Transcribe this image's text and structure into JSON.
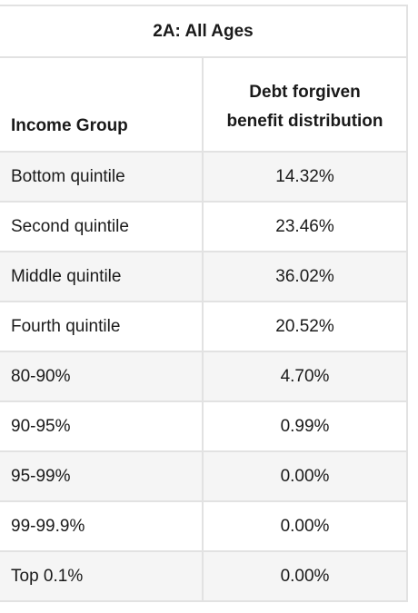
{
  "table": {
    "caption": "2A: All Ages",
    "headers": {
      "group": "Income Group",
      "value_line1": "Debt forgiven",
      "value_line2": "benefit distribution"
    },
    "rows": [
      {
        "group": "Bottom quintile",
        "value": "14.32%"
      },
      {
        "group": "Second quintile",
        "value": "23.46%"
      },
      {
        "group": "Middle quintile",
        "value": "36.02%"
      },
      {
        "group": "Fourth quintile",
        "value": "20.52%"
      },
      {
        "group": "80-90%",
        "value": "4.70%"
      },
      {
        "group": "90-95%",
        "value": "0.99%"
      },
      {
        "group": "95-99%",
        "value": "0.00%"
      },
      {
        "group": "99-99.9%",
        "value": "0.00%"
      },
      {
        "group": "Top 0.1%",
        "value": "0.00%"
      }
    ]
  },
  "colors": {
    "border": "#e2e2e2",
    "shaded_row": "#f5f5f5",
    "text": "#1a1a1a"
  }
}
